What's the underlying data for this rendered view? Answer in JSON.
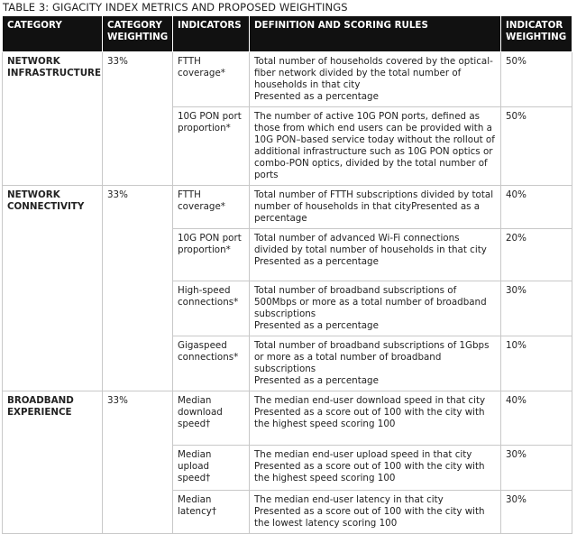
{
  "title": "TABLE 3: GIGACITY INDEX METRICS AND PROPOSED WEIGHTINGS",
  "table": {
    "header": [
      "CATEGORY",
      "CATEGORY WEIGHTING",
      "INDICATORS",
      "DEFINITION AND SCORING RULES",
      "INDICATOR WEIGHTING"
    ],
    "groups": [
      {
        "category": "NETWORK INFRASTRUCTURE",
        "weighting": "33%",
        "indicators": [
          {
            "name": "FTTH coverage*",
            "definition": [
              "Total number of households covered by the optical-fiber network divided by the total number of households in that city",
              "Presented as a percentage"
            ],
            "weighting": "50%"
          },
          {
            "name": "10G PON port proportion*",
            "definition": [
              "The number of active 10G PON ports, defined as those from which end users can be provided with a 10G PON–based service today without the rollout of additional infrastructure such as 10G PON optics or combo-PON optics, divided by the total number of ports"
            ],
            "weighting": "50%"
          }
        ]
      },
      {
        "category": "NETWORK CONNECTIVITY",
        "weighting": "33%",
        "indicators": [
          {
            "name": "FTTH coverage*",
            "definition": [
              "Total number of FTTH subscriptions divided by total number of households in that cityPresented as a percentage"
            ],
            "weighting": "40%"
          },
          {
            "name": "10G PON port proportion*",
            "definition": [
              "Total number of advanced Wi-Fi connections divided by total number of households in that city",
              "Presented as a percentage"
            ],
            "weighting": "20%"
          },
          {
            "name": "High-speed connections*",
            "definition": [
              "Total number of broadband subscriptions of 500Mbps or more as a total number of broadband subscriptions",
              "Presented as a percentage"
            ],
            "weighting": "30%"
          },
          {
            "name": "Gigaspeed connections*",
            "definition": [
              "Total number of broadband subscriptions of 1Gbps or more as a total number of broadband subscriptions",
              "Presented as a percentage"
            ],
            "weighting": "10%"
          }
        ]
      },
      {
        "category": "BROADBAND EXPERIENCE",
        "weighting": "33%",
        "indicators": [
          {
            "name": "Median download speed†",
            "definition": [
              "The median end-user download speed in that city",
              "Presented as a score out of 100 with the city with the highest speed scoring 100"
            ],
            "weighting": "40%"
          },
          {
            "name": "Median upload speed†",
            "definition": [
              "The median end-user upload speed in that city",
              "Presented as a score out of 100 with the city with the highest speed scoring 100"
            ],
            "weighting": "30%"
          },
          {
            "name": "Median latency†",
            "definition": [
              "The median end-user latency in that city",
              "Presented as a score out of 100 with the city with the lowest latency scoring 100"
            ],
            "weighting": "30%"
          }
        ]
      }
    ]
  }
}
